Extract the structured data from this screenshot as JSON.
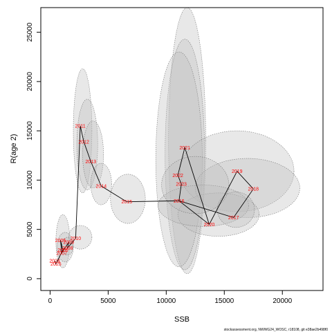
{
  "chart_data": {
    "type": "scatter",
    "title": "",
    "xlabel": "SSB",
    "ylabel": "R(age 2)",
    "xlim": [
      -800,
      23500
    ],
    "ylim": [
      -1200,
      27500
    ],
    "x_ticks": [
      0,
      5000,
      10000,
      15000,
      20000
    ],
    "y_ticks": [
      0,
      5000,
      10000,
      15000,
      20000,
      25000
    ],
    "grid": false,
    "legend": "none",
    "colors": {
      "ellipse_fill": "#bdbdbd",
      "ellipse_stroke": "#777777",
      "path": "#000000",
      "year_label": "#ff0000"
    },
    "points": [
      {
        "year": "2005",
        "x": 900,
        "y": 3900
      },
      {
        "year": "2006",
        "x": 1100,
        "y": 2900
      },
      {
        "year": "2007",
        "x": 1000,
        "y": 2600
      },
      {
        "year": "2008",
        "x": 1500,
        "y": 3100
      },
      {
        "year": "2009",
        "x": 1600,
        "y": 3700
      },
      {
        "year": "2010",
        "x": 2200,
        "y": 4100
      },
      {
        "year": "2011",
        "x": 2600,
        "y": 15500
      },
      {
        "year": "2012",
        "x": 2900,
        "y": 13900
      },
      {
        "year": "2013",
        "x": 3500,
        "y": 11900
      },
      {
        "year": "2014",
        "x": 4400,
        "y": 9400
      },
      {
        "year": "2015",
        "x": 6600,
        "y": 7800
      },
      {
        "year": "2016",
        "x": 11100,
        "y": 7900
      },
      {
        "year": "2017",
        "x": 15800,
        "y": 6200
      },
      {
        "year": "2018",
        "x": 17500,
        "y": 9100
      },
      {
        "year": "2019",
        "x": 16100,
        "y": 10900
      },
      {
        "year": "2020",
        "x": 13700,
        "y": 5500
      },
      {
        "year": "2021",
        "x": 11600,
        "y": 13300
      },
      {
        "year": "2022",
        "x": 11000,
        "y": 10500
      },
      {
        "year": "2023",
        "x": 11300,
        "y": 9600
      },
      {
        "year": "2024",
        "x": 400,
        "y": 1800
      },
      {
        "year": "2025",
        "x": 500,
        "y": 1500
      }
    ],
    "path_order": [
      "2024",
      "2025",
      "2006",
      "2005",
      "2007",
      "2009",
      "2008",
      "2010",
      "2011",
      "2012",
      "2013",
      "2014",
      "2015",
      "2016",
      "2020",
      "2019",
      "2018",
      "2017",
      "2016",
      "2023",
      "2022",
      "2021",
      "2020"
    ],
    "uncertainty_ellipses": [
      {
        "cx": 1100,
        "cy": 3800,
        "rx": 600,
        "ry": 2700
      },
      {
        "cx": 1300,
        "cy": 3200,
        "rx": 700,
        "ry": 1500
      },
      {
        "cx": 1500,
        "cy": 3300,
        "rx": 500,
        "ry": 900
      },
      {
        "cx": 2600,
        "cy": 4200,
        "rx": 1000,
        "ry": 1200
      },
      {
        "cx": 2800,
        "cy": 15000,
        "rx": 800,
        "ry": 6300
      },
      {
        "cx": 3200,
        "cy": 13600,
        "rx": 900,
        "ry": 4600
      },
      {
        "cx": 3700,
        "cy": 12600,
        "rx": 900,
        "ry": 3400
      },
      {
        "cx": 4400,
        "cy": 9600,
        "rx": 900,
        "ry": 2100
      },
      {
        "cx": 6700,
        "cy": 8100,
        "rx": 1500,
        "ry": 2500
      },
      {
        "cx": 11800,
        "cy": 14000,
        "rx": 1600,
        "ry": 13500
      },
      {
        "cx": 11600,
        "cy": 12600,
        "rx": 1700,
        "ry": 11700
      },
      {
        "cx": 11100,
        "cy": 12100,
        "rx": 2000,
        "ry": 10900
      },
      {
        "cx": 16100,
        "cy": 10900,
        "rx": 4900,
        "ry": 4100
      },
      {
        "cx": 17000,
        "cy": 9200,
        "rx": 4500,
        "ry": 3000
      },
      {
        "cx": 14500,
        "cy": 6500,
        "rx": 3500,
        "ry": 2200
      },
      {
        "cx": 13200,
        "cy": 7400,
        "rx": 3900,
        "ry": 2100
      },
      {
        "cx": 12500,
        "cy": 9500,
        "rx": 2900,
        "ry": 2900
      },
      {
        "cx": 16000,
        "cy": 7000,
        "rx": 1600,
        "ry": 1800
      }
    ]
  },
  "footer": {
    "credit": "stockassessment.org, NWWG24_WOSC, r18108, git e38ae2b498f0"
  }
}
